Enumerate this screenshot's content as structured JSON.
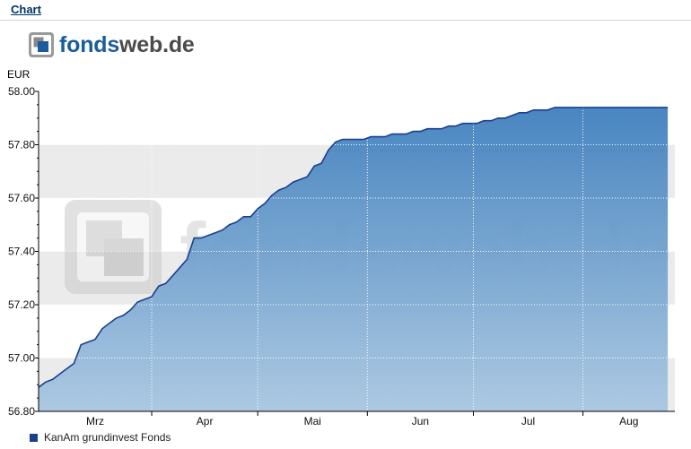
{
  "header": {
    "chart_link": "Chart"
  },
  "logo": {
    "part1": "fonds",
    "part2": "web.de",
    "watermark": "fondsweb.de"
  },
  "colors": {
    "line": "#1b3f8f",
    "fill_top": "#3f7fbd",
    "fill_bottom": "#a9c7e1",
    "band": "#ebebeb",
    "grid": "#ffffff",
    "legend": "#1b3f8f"
  },
  "chart_data": {
    "type": "area",
    "unit": "EUR",
    "ylim": [
      56.8,
      58.0
    ],
    "y_ticks": [
      "56.80",
      "57.00",
      "57.20",
      "57.40",
      "57.60",
      "57.80",
      "58.00"
    ],
    "x_months": [
      "Mrz",
      "Apr",
      "Mai",
      "Jun",
      "Jul",
      "Aug"
    ],
    "legend_position": "bottom-left",
    "series": [
      {
        "name": "KanAm grundinvest Fonds",
        "x": [
          0,
          2,
          4,
          6,
          8,
          10,
          12,
          14,
          16,
          18,
          20,
          22,
          24,
          26,
          28,
          30,
          32,
          34,
          36,
          38,
          40,
          42,
          44,
          46,
          48,
          50,
          52,
          54,
          56,
          58,
          60,
          62,
          64,
          66,
          68,
          70,
          72,
          74,
          76,
          78,
          80,
          82,
          84,
          86,
          88,
          90,
          92,
          94,
          96,
          98,
          100,
          102,
          104,
          106,
          108,
          110,
          112,
          114,
          116,
          118,
          120,
          122,
          124,
          126,
          128,
          130,
          132,
          134,
          136,
          138,
          140,
          142,
          144,
          146,
          148,
          150,
          152,
          154,
          156,
          158,
          160,
          162,
          164,
          166,
          168,
          170,
          172,
          174,
          176,
          178
        ],
        "values": [
          56.89,
          56.91,
          56.92,
          56.94,
          56.96,
          56.98,
          57.05,
          57.06,
          57.07,
          57.11,
          57.13,
          57.15,
          57.16,
          57.18,
          57.21,
          57.22,
          57.23,
          57.27,
          57.28,
          57.31,
          57.34,
          57.37,
          57.45,
          57.45,
          57.46,
          57.47,
          57.48,
          57.5,
          57.51,
          57.53,
          57.53,
          57.56,
          57.58,
          57.61,
          57.63,
          57.64,
          57.66,
          57.67,
          57.68,
          57.72,
          57.73,
          57.78,
          57.81,
          57.82,
          57.82,
          57.82,
          57.82,
          57.83,
          57.83,
          57.83,
          57.84,
          57.84,
          57.84,
          57.85,
          57.85,
          57.86,
          57.86,
          57.86,
          57.87,
          57.87,
          57.88,
          57.88,
          57.88,
          57.89,
          57.89,
          57.9,
          57.9,
          57.91,
          57.92,
          57.92,
          57.93,
          57.93,
          57.93,
          57.94,
          57.94,
          57.94,
          57.94,
          57.94,
          57.94,
          57.94,
          57.94,
          57.94,
          57.94,
          57.94,
          57.94,
          57.94,
          57.94,
          57.94,
          57.94,
          57.94
        ]
      }
    ]
  }
}
